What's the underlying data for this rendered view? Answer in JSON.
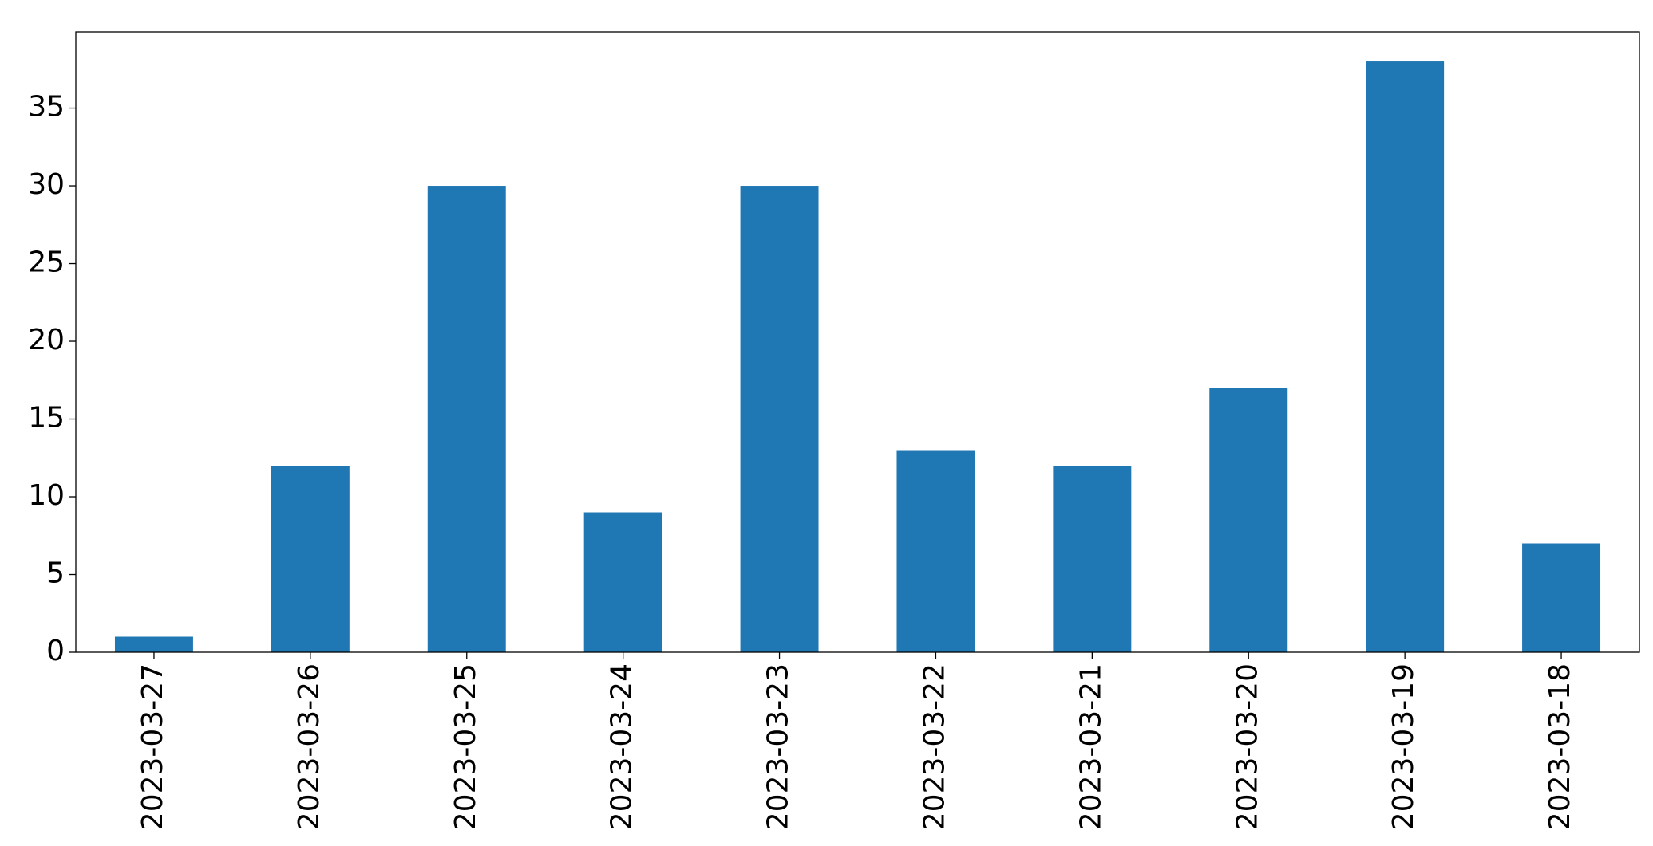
{
  "chart_data": {
    "type": "bar",
    "categories": [
      "2023-03-27",
      "2023-03-26",
      "2023-03-25",
      "2023-03-24",
      "2023-03-23",
      "2023-03-22",
      "2023-03-21",
      "2023-03-20",
      "2023-03-19",
      "2023-03-18"
    ],
    "values": [
      1,
      12,
      30,
      9,
      30,
      13,
      12,
      17,
      38,
      7
    ],
    "color": "#1f77b4",
    "ylim": [
      0,
      39.9
    ],
    "yticks": [
      0,
      5,
      10,
      15,
      20,
      25,
      30,
      35
    ],
    "grid": false
  }
}
